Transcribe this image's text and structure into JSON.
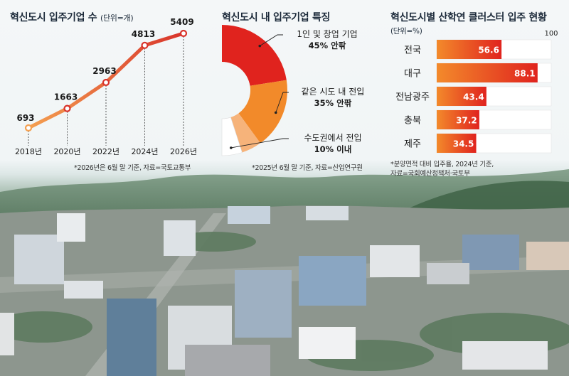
{
  "panels": {
    "left": {
      "title": "혁신도시 입주기업 수",
      "unit": "(단위=개)",
      "note": "*2026년은 6월 말 기준, 자료=국토교통부"
    },
    "middle": {
      "title": "혁신도시 내 입주기업 특징",
      "note": "*2025년 6월 말 기준, 자료=산업연구원"
    },
    "right": {
      "title": "혁신도시별 산학연 클러스터 입주 현황",
      "unit": "(단위=%)",
      "note_line1": "*분양면적 대비 입주율, 2024년 기준,",
      "note_line2": "자료=국회예산정책처·국토부"
    }
  },
  "chart_data": [
    {
      "type": "line",
      "title": "혁신도시 입주기업 수",
      "unit": "(단위=개)",
      "categories": [
        "2018년",
        "2020년",
        "2022년",
        "2024년",
        "2026년"
      ],
      "values": [
        693,
        1663,
        2963,
        4813,
        5409
      ],
      "colors": {
        "line": "#d8332b",
        "start": "#f4a050",
        "marker_fill": "#ffffff"
      }
    },
    {
      "type": "pie",
      "title": "혁신도시 내 입주기업 특징",
      "style": "half-donut",
      "slices": [
        {
          "name": "1인 및 창업 기업",
          "share": 45,
          "value_label": "45% 안팎",
          "color": "#e0231e"
        },
        {
          "name": "같은 시도 내 전입",
          "share": 35,
          "value_label": "35% 안팎",
          "color": "#f28a2a"
        },
        {
          "name": "",
          "share": 10,
          "value_label": "",
          "color": "#f6b37a"
        },
        {
          "name": "수도권에서 전입",
          "share": 10,
          "value_label": "10% 이내",
          "color": "#ffffff"
        }
      ]
    },
    {
      "type": "bar",
      "orientation": "horizontal",
      "title": "혁신도시별 산학연 클러스터 입주 현황",
      "unit": "(단위=%)",
      "categories": [
        "전국",
        "대구",
        "전남광주",
        "충북",
        "제주"
      ],
      "values": [
        56.6,
        88.1,
        43.4,
        37.2,
        34.5
      ],
      "max_label": "100",
      "xlim": [
        0,
        100
      ],
      "colors": {
        "bar_start": "#f38a2b",
        "bar_end": "#e0231e",
        "track": "#ffffff",
        "accent": "#d9221b"
      }
    }
  ]
}
